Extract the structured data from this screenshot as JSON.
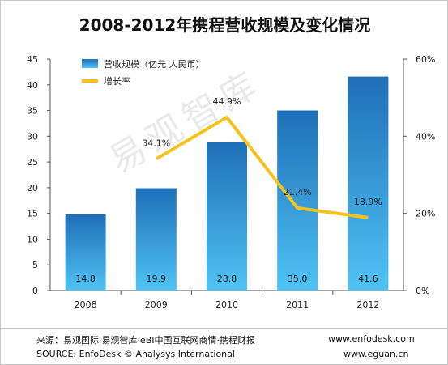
{
  "title": "2008-2012年携程营收规模及变化情况",
  "chart_data": {
    "type": "bar",
    "categories": [
      "2008",
      "2009",
      "2010",
      "2011",
      "2012"
    ],
    "series": [
      {
        "name": "营收规模（亿元 人民币）",
        "type": "bar",
        "axis": "left",
        "values": [
          14.8,
          19.9,
          28.8,
          35.0,
          41.6
        ],
        "labels": [
          "14.8",
          "19.9",
          "28.8",
          "35.0",
          "41.6"
        ],
        "color": "#2a8fd6"
      },
      {
        "name": "增长率",
        "type": "line",
        "axis": "right",
        "values": [
          null,
          34.1,
          44.9,
          21.4,
          18.9
        ],
        "labels": [
          "",
          "34.1%",
          "44.9%",
          "21.4%",
          "18.9%"
        ],
        "color": "#f5c21b"
      }
    ],
    "y_left": {
      "min": 0,
      "max": 45,
      "ticks": [
        "0",
        "5",
        "10",
        "15",
        "20",
        "25",
        "30",
        "35",
        "40",
        "45"
      ]
    },
    "y_right": {
      "min": 0,
      "max": 60,
      "ticks": [
        "0%",
        "20%",
        "40%",
        "60%"
      ]
    },
    "grid": false,
    "legend_position": "top-left"
  },
  "watermark": "易观智库",
  "footer": {
    "source_cn": "来源：易观国际·易观智库·eBI中国互联网商情·携程财报",
    "site1": "www.enfodesk.com",
    "source_en": "SOURCE: EnfoDesk © Analysys International",
    "site2": "www.eguan.cn"
  }
}
